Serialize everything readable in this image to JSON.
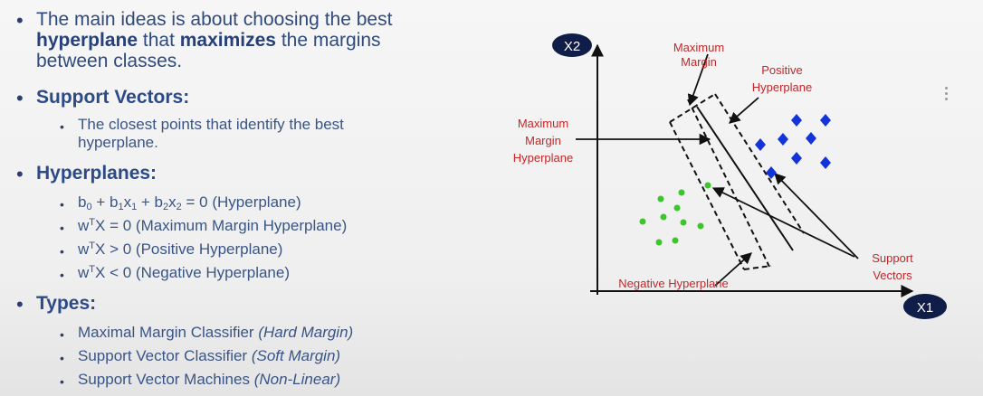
{
  "bullets": {
    "intro_a": "The main ideas is about choosing the best",
    "intro_bold1": "hyperplane",
    "intro_mid": " that ",
    "intro_bold2": "maximizes",
    "intro_end": " the margins",
    "intro_line3": "between classes.",
    "support_vectors_title": "Support Vectors:",
    "support_vectors_desc_1": "The closest points that identify the best",
    "support_vectors_desc_2": "hyperplane.",
    "hyperplanes_title": "Hyperplanes:",
    "eq1_label": "(Hyperplane)",
    "eq2_label": "(Maximum Margin Hyperplane)",
    "eq3_label": "(Positive Hyperplane)",
    "eq4_label": "(Negative Hyperplane)",
    "types_title": "Types:",
    "type1": "Maximal Margin Classifier",
    "type1_note": "(Hard Margin)",
    "type2": "Support Vector Classifier",
    "type2_note": "(Soft Margin)",
    "type3": "Support Vector Machines",
    "type3_note": "(Non-Linear)"
  },
  "diagram": {
    "axis_x": "X1",
    "axis_y": "X2",
    "label_max_margin_1": "Maximum",
    "label_max_margin_2": "Margin",
    "label_pos_hyper_1": "Positive",
    "label_pos_hyper_2": "Hyperplane",
    "label_mmh_1": "Maximum",
    "label_mmh_2": "Margin",
    "label_mmh_3": "Hyperplane",
    "label_sv_1": "Support",
    "label_sv_2": "Vectors",
    "label_neg_hyper": "Negative Hyperplane",
    "colors": {
      "label_red": "#c0282a",
      "diamond_blue": "#1433d9",
      "dot_green": "#3cc62b",
      "axis_badge": "#0f1d48"
    }
  }
}
